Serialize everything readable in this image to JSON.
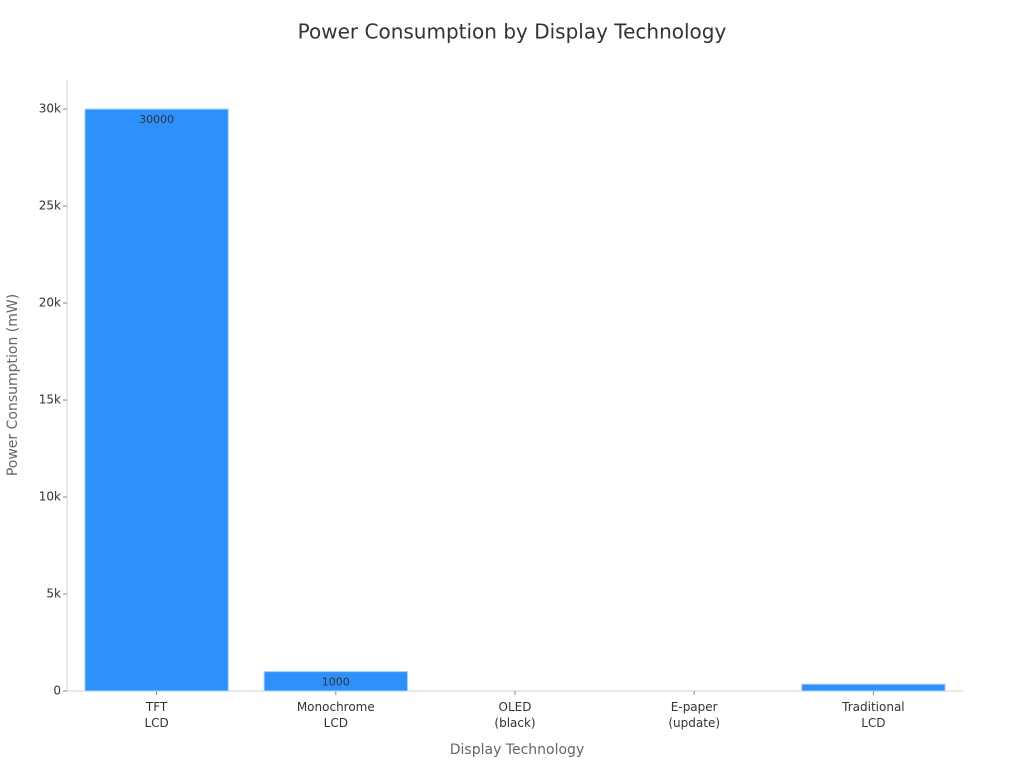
{
  "chart_data": {
    "type": "bar",
    "title": "Power Consumption by Display Technology",
    "x_label": "Display Technology",
    "y_label": "Power Consumption (mW)",
    "categories": [
      "TFT LCD",
      "Monochrome LCD",
      "OLED (black)",
      "E-paper (update)",
      "Traditional LCD"
    ],
    "values": [
      30000,
      1000,
      0,
      0,
      350
    ],
    "color": "#2e90fa",
    "ylim": [
      0,
      31500
    ],
    "yticks": [
      0,
      {
        "value": 5000,
        "label": "5k"
      },
      {
        "value": 10000,
        "label": "10k"
      },
      {
        "value": 15000,
        "label": "15k"
      },
      {
        "value": 20000,
        "label": "20k"
      },
      {
        "value": 25000,
        "label": "25k"
      },
      {
        "value": 30000,
        "label": "30k"
      }
    ],
    "grid": false
  }
}
